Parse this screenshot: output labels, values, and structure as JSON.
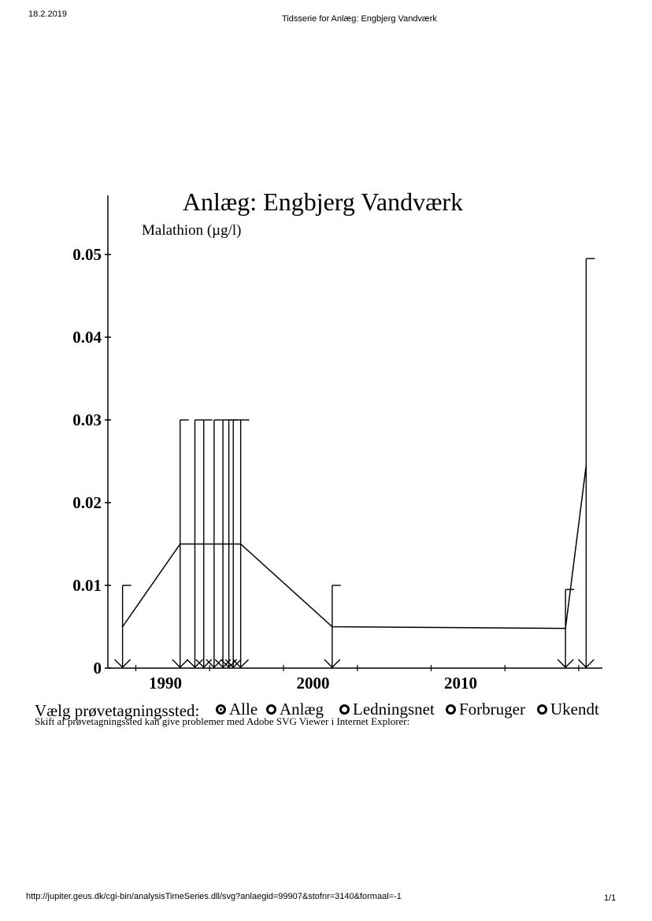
{
  "header": {
    "date": "18.2.2019",
    "title": "Tidsserie for Anlæg: Engbjerg Vandværk"
  },
  "footer": {
    "url": "http://jupiter.geus.dk/cgi-bin/analysisTimeSeries.dll/svg?anlaegid=99907&stofnr=3140&formaal=-1",
    "page": "1/1"
  },
  "chart_data": {
    "type": "line",
    "title": "Anlæg: Engbjerg Vandværk",
    "ylabel": "Malathion (µg/l)",
    "xlabel": "",
    "xlim": [
      1987.0,
      2018.5
    ],
    "ylim": [
      0,
      0.055
    ],
    "x_ticks": [
      1990,
      2000,
      2010
    ],
    "y_ticks": [
      0,
      0.01,
      0.02,
      0.03,
      0.04,
      0.05
    ],
    "y_tick_labels": [
      "0",
      "0.01",
      "0.02",
      "0.03",
      "0.04",
      "0.05"
    ],
    "grid": false,
    "series": [
      {
        "values_note": "",
        "x": [
          1987.1,
          1991.0,
          1995.1,
          2001.3,
          2017.1,
          2018.5
        ],
        "y": [
          0.005,
          0.015,
          0.015,
          0.005,
          0.0048,
          0.0245
        ]
      }
    ],
    "detection_limits": [
      {
        "x": 1987.1,
        "y": 0.01
      },
      {
        "x": 1991.0,
        "y": 0.03
      },
      {
        "x": 1992.0,
        "y": 0.03
      },
      {
        "x": 1992.6,
        "y": 0.03
      },
      {
        "x": 1993.3,
        "y": 0.03
      },
      {
        "x": 1993.9,
        "y": 0.03
      },
      {
        "x": 1994.3,
        "y": 0.03
      },
      {
        "x": 1994.6,
        "y": 0.03
      },
      {
        "x": 1995.1,
        "y": 0.03
      },
      {
        "x": 2001.3,
        "y": 0.01
      },
      {
        "x": 2017.1,
        "y": 0.0095
      },
      {
        "x": 2018.5,
        "y": 0.0495
      }
    ]
  },
  "sampling": {
    "label": "Vælg prøvetagningssted:",
    "options": [
      {
        "label": "Alle",
        "checked": true
      },
      {
        "label": "Anlæg",
        "checked": false
      },
      {
        "label": "Ledningsnet",
        "checked": false
      },
      {
        "label": "Forbruger",
        "checked": false
      },
      {
        "label": "Ukendt",
        "checked": false
      }
    ],
    "note": "Skift af prøvetagningssted kan give problemer med Adobe SVG Viewer i Internet Explorer:"
  }
}
